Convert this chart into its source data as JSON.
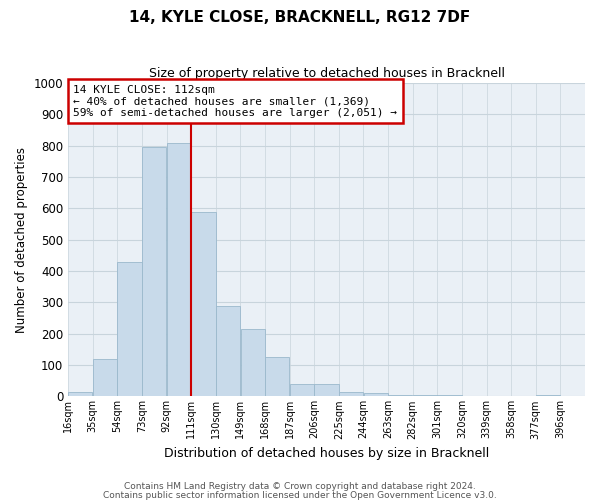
{
  "title": "14, KYLE CLOSE, BRACKNELL, RG12 7DF",
  "subtitle": "Size of property relative to detached houses in Bracknell",
  "xlabel": "Distribution of detached houses by size in Bracknell",
  "ylabel": "Number of detached properties",
  "bar_color": "#c8daea",
  "bar_edgecolor": "#9ab8cc",
  "background_color": "#ffffff",
  "plot_bg_color": "#eaf0f6",
  "grid_color": "#c8d4dc",
  "vline_x": 111,
  "vline_color": "#cc0000",
  "bin_left_edges": [
    16,
    35,
    54,
    73,
    92,
    111,
    130,
    149,
    168,
    187,
    206,
    225,
    244,
    263,
    282,
    301,
    320,
    339,
    358,
    377
  ],
  "bin_heights": [
    15,
    120,
    430,
    795,
    810,
    590,
    290,
    215,
    125,
    40,
    40,
    15,
    10,
    5,
    5,
    5,
    0,
    0,
    0,
    5
  ],
  "bin_width": 19,
  "tick_positions": [
    16,
    35,
    54,
    73,
    92,
    111,
    130,
    149,
    168,
    187,
    206,
    225,
    244,
    263,
    282,
    301,
    320,
    339,
    358,
    377,
    396
  ],
  "tick_labels": [
    "16sqm",
    "35sqm",
    "54sqm",
    "73sqm",
    "92sqm",
    "111sqm",
    "130sqm",
    "149sqm",
    "168sqm",
    "187sqm",
    "206sqm",
    "225sqm",
    "244sqm",
    "263sqm",
    "282sqm",
    "301sqm",
    "320sqm",
    "339sqm",
    "358sqm",
    "377sqm",
    "396sqm"
  ],
  "annotation_title": "14 KYLE CLOSE: 112sqm",
  "annotation_line1": "← 40% of detached houses are smaller (1,369)",
  "annotation_line2": "59% of semi-detached houses are larger (2,051) →",
  "ylim": [
    0,
    1000
  ],
  "yticks": [
    0,
    100,
    200,
    300,
    400,
    500,
    600,
    700,
    800,
    900,
    1000
  ],
  "xlim_left": 16,
  "xlim_right": 415,
  "footer_line1": "Contains HM Land Registry data © Crown copyright and database right 2024.",
  "footer_line2": "Contains public sector information licensed under the Open Government Licence v3.0."
}
